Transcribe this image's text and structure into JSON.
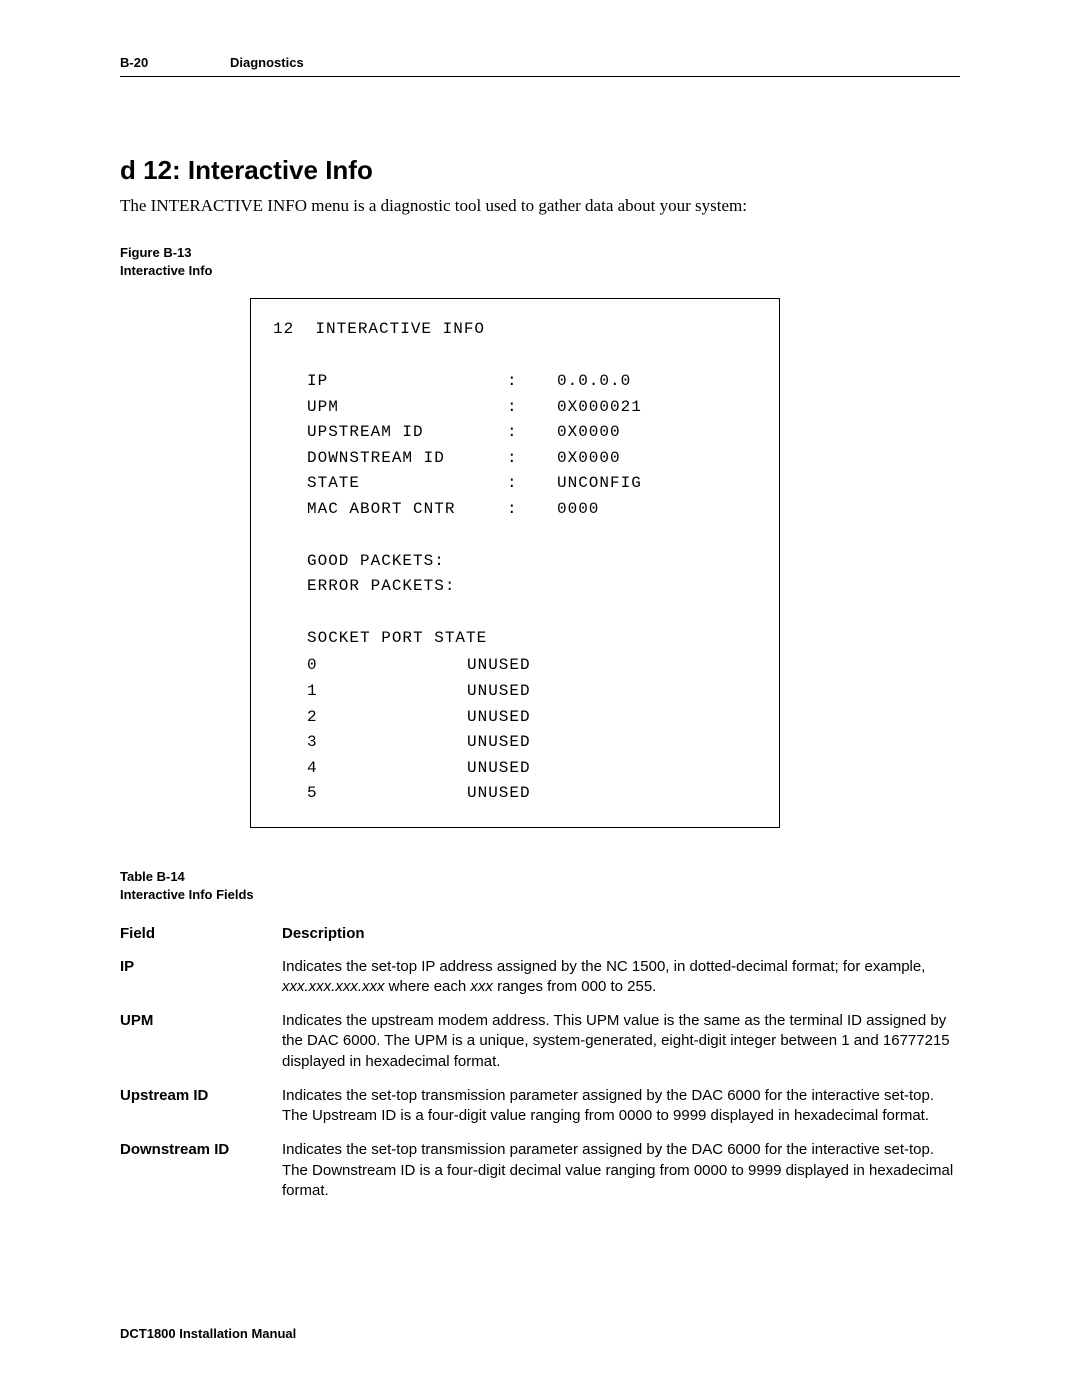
{
  "header": {
    "page_ref": "B-20",
    "section": "Diagnostics"
  },
  "title": "d 12: Interactive Info",
  "intro": "The INTERACTIVE INFO menu is a diagnostic tool used to gather data about your system:",
  "figure_caption": {
    "line1": "Figure B-13",
    "line2": "Interactive Info"
  },
  "terminal": {
    "header_num": "12",
    "header_title": "INTERACTIVE INFO",
    "kv": [
      {
        "label": "IP",
        "value": "0.0.0.0"
      },
      {
        "label": "UPM",
        "value": "0X000021"
      },
      {
        "label": "UPSTREAM ID",
        "value": "0X0000"
      },
      {
        "label": "DOWNSTREAM ID",
        "value": "0X0000"
      },
      {
        "label": "STATE",
        "value": "UNCONFIG"
      },
      {
        "label": "MAC ABORT CNTR",
        "value": "0000"
      }
    ],
    "packets": {
      "good": "GOOD PACKETS:",
      "error": "ERROR PACKETS:"
    },
    "socket_header": "SOCKET PORT STATE",
    "sockets": [
      {
        "num": "0",
        "state": "UNUSED"
      },
      {
        "num": "1",
        "state": "UNUSED"
      },
      {
        "num": "2",
        "state": "UNUSED"
      },
      {
        "num": "3",
        "state": "UNUSED"
      },
      {
        "num": "4",
        "state": "UNUSED"
      },
      {
        "num": "5",
        "state": "UNUSED"
      }
    ]
  },
  "table_caption": {
    "line1": "Table B-14",
    "line2": "Interactive Info Fields"
  },
  "field_table": {
    "headers": {
      "col1": "Field",
      "col2": "Description"
    },
    "rows": [
      {
        "field": "IP",
        "desc_pre": "Indicates the set-top IP address assigned by the NC 1500, in dotted-decimal format; for example, ",
        "desc_italic1": "xxx.xxx.xxx.xxx",
        "desc_mid": " where each ",
        "desc_italic2": "xxx",
        "desc_post": " ranges from 000 to 255."
      },
      {
        "field": "UPM",
        "desc": "Indicates the upstream modem address. This UPM value is the same as the terminal ID assigned by the DAC 6000. The UPM is a unique, system-generated, eight-digit integer between 1 and 16777215 displayed in hexadecimal format."
      },
      {
        "field": "Upstream ID",
        "desc": "Indicates the set-top transmission parameter assigned by the DAC 6000 for the interactive set-top. The Upstream ID is a four-digit value ranging from 0000 to 9999 displayed in hexadecimal format."
      },
      {
        "field": "Downstream ID",
        "desc": "Indicates the set-top transmission parameter assigned by the DAC 6000 for the interactive set-top. The Downstream ID is a four-digit decimal value ranging from 0000 to 9999 displayed in hexadecimal format."
      }
    ]
  },
  "footer": "DCT1800 Installation Manual"
}
